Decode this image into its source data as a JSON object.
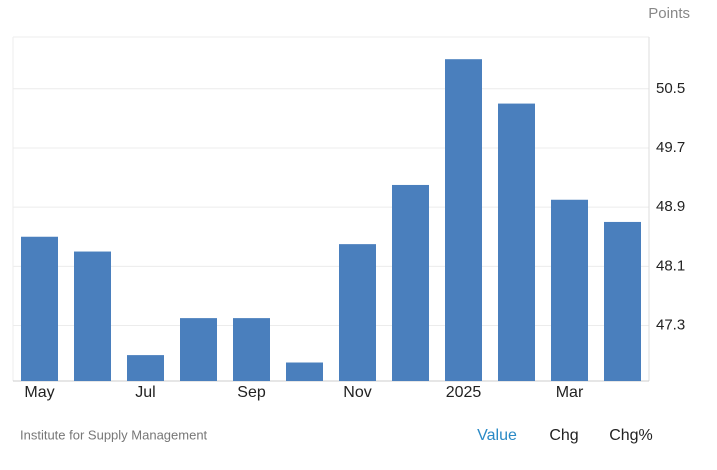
{
  "chart_data": {
    "type": "bar",
    "y_axis_title": "Points",
    "categories": [
      "May",
      null,
      "Jul",
      null,
      "Sep",
      null,
      "Nov",
      null,
      "2025",
      null,
      "Mar",
      null
    ],
    "values": [
      48.5,
      48.3,
      46.9,
      47.4,
      47.4,
      46.8,
      48.4,
      49.2,
      50.9,
      50.3,
      49.0,
      48.7
    ],
    "color": "#4a7fbd",
    "ylim": [
      46.55,
      51.2
    ],
    "yticks": [
      47.3,
      48.1,
      48.9,
      49.7,
      50.5
    ],
    "grid": true,
    "source": "Institute for Supply Management",
    "tabs": [
      "Value",
      "Chg",
      "Chg%"
    ]
  }
}
